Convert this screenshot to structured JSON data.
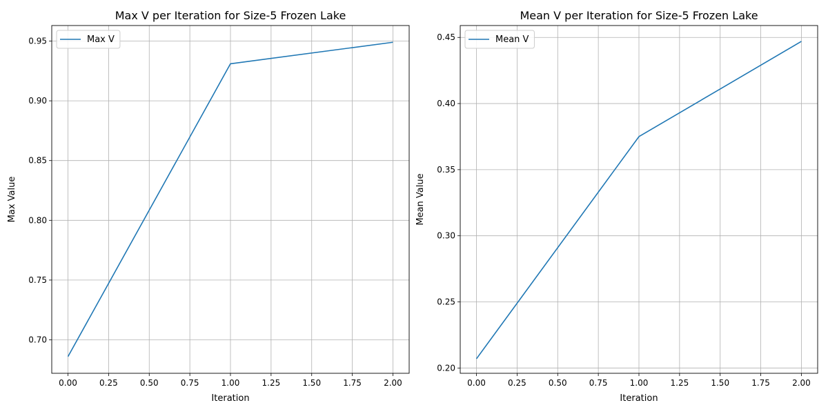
{
  "chart_data": [
    {
      "type": "line",
      "title": "Max V per Iteration for Size-5 Frozen Lake",
      "xlabel": "Iteration",
      "ylabel": "Max Value",
      "xlim": [
        -0.1,
        2.1
      ],
      "ylim": [
        0.672,
        0.963
      ],
      "x_ticks": [
        0.0,
        0.25,
        0.5,
        0.75,
        1.0,
        1.25,
        1.5,
        1.75,
        2.0
      ],
      "x_tick_labels": [
        "0.00",
        "0.25",
        "0.50",
        "0.75",
        "1.00",
        "1.25",
        "1.50",
        "1.75",
        "2.00"
      ],
      "y_ticks": [
        0.7,
        0.75,
        0.8,
        0.85,
        0.9,
        0.95
      ],
      "y_tick_labels": [
        "0.70",
        "0.75",
        "0.80",
        "0.85",
        "0.90",
        "0.95"
      ],
      "grid": true,
      "legend_position": "upper-left",
      "series": [
        {
          "name": "Max V",
          "color": "#1f77b4",
          "x": [
            0,
            1,
            2
          ],
          "y": [
            0.686,
            0.931,
            0.949
          ]
        }
      ]
    },
    {
      "type": "line",
      "title": "Mean V per Iteration for Size-5 Frozen Lake",
      "xlabel": "Iteration",
      "ylabel": "Mean Value",
      "xlim": [
        -0.1,
        2.1
      ],
      "ylim": [
        0.196,
        0.459
      ],
      "x_ticks": [
        0.0,
        0.25,
        0.5,
        0.75,
        1.0,
        1.25,
        1.5,
        1.75,
        2.0
      ],
      "x_tick_labels": [
        "0.00",
        "0.25",
        "0.50",
        "0.75",
        "1.00",
        "1.25",
        "1.50",
        "1.75",
        "2.00"
      ],
      "y_ticks": [
        0.2,
        0.25,
        0.3,
        0.35,
        0.4,
        0.45
      ],
      "y_tick_labels": [
        "0.20",
        "0.25",
        "0.30",
        "0.35",
        "0.40",
        "0.45"
      ],
      "grid": true,
      "legend_position": "upper-left",
      "series": [
        {
          "name": "Mean V",
          "color": "#1f77b4",
          "x": [
            0,
            1,
            2
          ],
          "y": [
            0.207,
            0.375,
            0.447
          ]
        }
      ]
    }
  ]
}
